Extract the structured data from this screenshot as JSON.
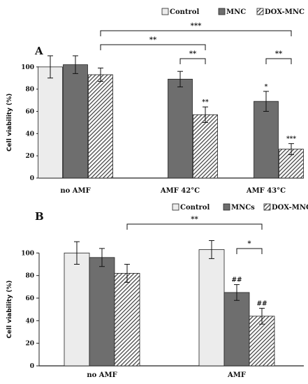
{
  "chart_data": [
    {
      "type": "bar",
      "panel_label": "A",
      "categories": [
        "no AMF",
        "AMF 42°C",
        "AMF 43°C"
      ],
      "series": [
        {
          "name": "Control",
          "values": [
            100,
            null,
            null
          ],
          "errors": [
            10,
            null,
            null
          ]
        },
        {
          "name": "MNC",
          "values": [
            102,
            89,
            69
          ],
          "errors": [
            8,
            7,
            9
          ]
        },
        {
          "name": "DOX-MNC",
          "values": [
            93,
            57,
            26
          ],
          "errors": [
            6,
            7,
            5
          ]
        }
      ],
      "ylabel": "Cell viability (%)",
      "ylim": [
        0,
        120
      ],
      "yticks": [
        "0",
        "20",
        "40",
        "60",
        "80",
        "100"
      ],
      "legend_position": "top-right",
      "bar_annotations": [
        {
          "category": 1,
          "series": 2,
          "text": "**"
        },
        {
          "category": 2,
          "series": 1,
          "text": "*"
        },
        {
          "category": 2,
          "series": 2,
          "text": "***"
        }
      ],
      "significance_brackets": [
        {
          "from": [
            0,
            2
          ],
          "to": [
            2,
            2
          ],
          "text": "***",
          "level": 3
        },
        {
          "from": [
            0,
            2
          ],
          "to": [
            1,
            2
          ],
          "text": "**",
          "level": 2
        },
        {
          "from": [
            1,
            1
          ],
          "to": [
            1,
            2
          ],
          "text": "**",
          "level": 1
        },
        {
          "from": [
            2,
            1
          ],
          "to": [
            2,
            2
          ],
          "text": "**",
          "level": 1
        }
      ]
    },
    {
      "type": "bar",
      "panel_label": "B",
      "categories": [
        "no AMF",
        "AMF"
      ],
      "series": [
        {
          "name": "Control",
          "values": [
            100,
            103
          ],
          "errors": [
            10,
            8
          ]
        },
        {
          "name": "MNCs",
          "values": [
            96,
            65
          ],
          "errors": [
            8,
            7
          ]
        },
        {
          "name": "DOX-MNC",
          "values": [
            82,
            44
          ],
          "errors": [
            8,
            7
          ]
        }
      ],
      "ylabel": "Cell viability (%)",
      "ylim": [
        0,
        120
      ],
      "yticks": [
        "0",
        "20",
        "40",
        "60",
        "80",
        "100"
      ],
      "legend_position": "top-right",
      "bar_annotations": [
        {
          "category": 1,
          "series": 1,
          "text": "##"
        },
        {
          "category": 1,
          "series": 2,
          "text": "##"
        }
      ],
      "significance_brackets": [
        {
          "from": [
            0,
            2
          ],
          "to": [
            1,
            2
          ],
          "text": "**",
          "level": 2
        },
        {
          "from": [
            1,
            1
          ],
          "to": [
            1,
            2
          ],
          "text": "*",
          "level": 1
        }
      ]
    }
  ],
  "colors": {
    "control": "#ececec",
    "mnc": "#6e6e6e",
    "dox_mnc_hatch": "#3c3c3c",
    "border": "#222222"
  }
}
